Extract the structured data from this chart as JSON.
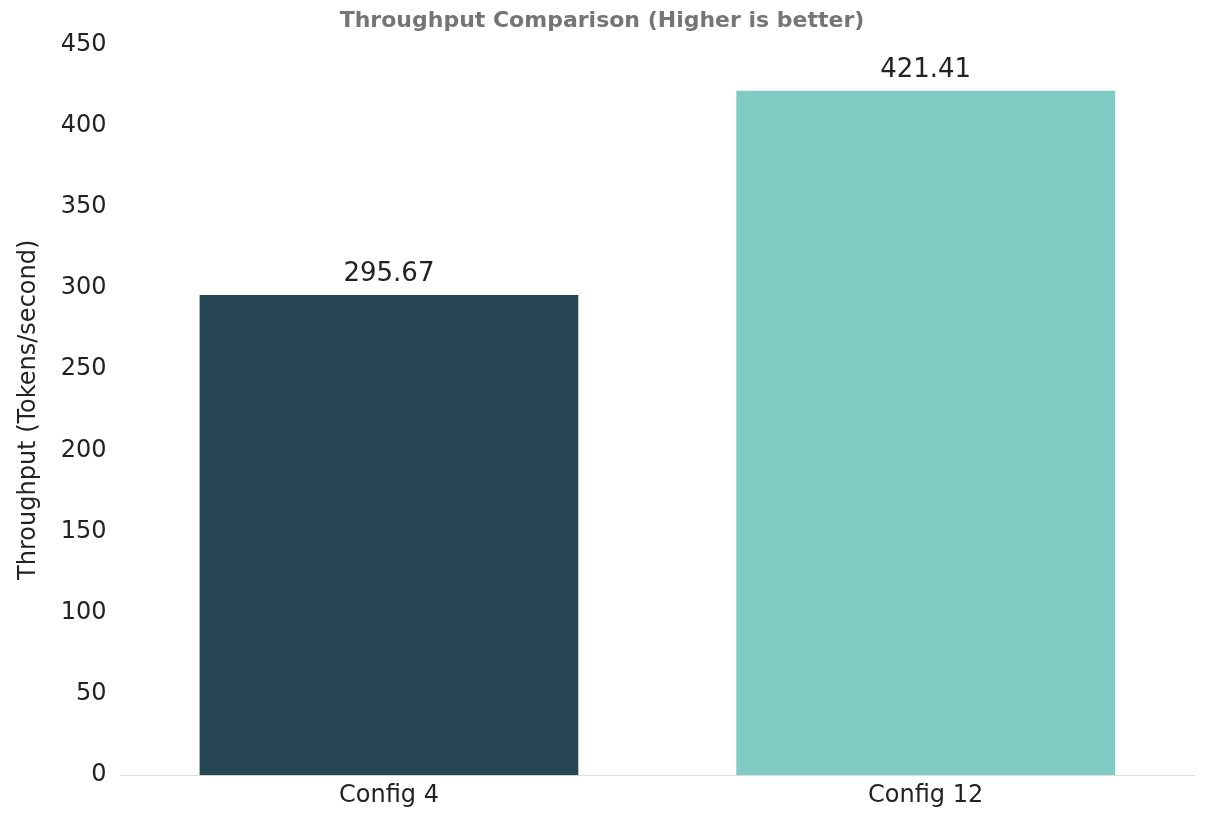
{
  "chart_data": {
    "type": "bar",
    "title": "Throughput Comparison (Higher is better)",
    "ylabel": "Throughput (Tokens/second)",
    "categories": [
      "Config 4",
      "Config 12"
    ],
    "values": [
      295.67,
      421.41
    ],
    "colors": [
      "#264653",
      "#80cbc4"
    ],
    "ylim": [
      0,
      450
    ],
    "yticks": [
      0,
      50,
      100,
      150,
      200,
      250,
      300,
      350,
      400,
      450
    ],
    "data_labels": true,
    "grid": false,
    "legend": false
  }
}
